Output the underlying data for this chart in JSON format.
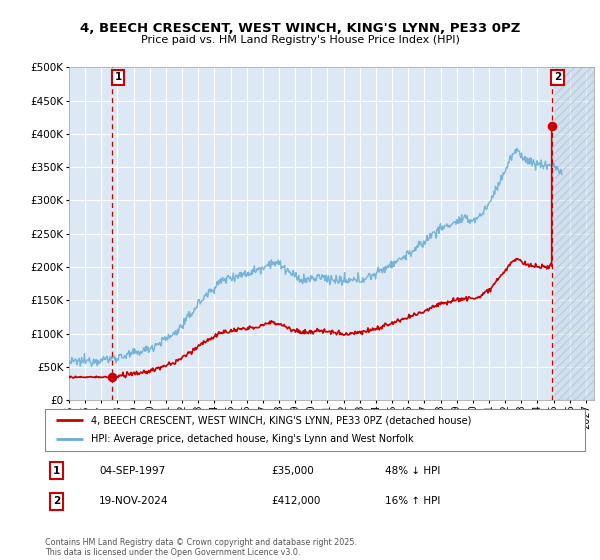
{
  "title_line1": "4, BEECH CRESCENT, WEST WINCH, KING'S LYNN, PE33 0PZ",
  "title_line2": "Price paid vs. HM Land Registry's House Price Index (HPI)",
  "ylim": [
    0,
    500000
  ],
  "xlim_start": 1995.0,
  "xlim_end": 2027.5,
  "yticks": [
    0,
    50000,
    100000,
    150000,
    200000,
    250000,
    300000,
    350000,
    400000,
    450000,
    500000
  ],
  "ytick_labels": [
    "£0",
    "£50K",
    "£100K",
    "£150K",
    "£200K",
    "£250K",
    "£300K",
    "£350K",
    "£400K",
    "£450K",
    "£500K"
  ],
  "bg_color": "#dce9f5",
  "grid_color": "#ffffff",
  "hpi_color": "#6aadd5",
  "property_color": "#cc0000",
  "point1_date": 1997.67,
  "point1_price": 35000,
  "point2_date": 2024.88,
  "point2_price": 412000,
  "legend_label1": "4, BEECH CRESCENT, WEST WINCH, KING'S LYNN, PE33 0PZ (detached house)",
  "legend_label2": "HPI: Average price, detached house, King's Lynn and West Norfolk",
  "table_row1": [
    "1",
    "04-SEP-1997",
    "£35,000",
    "48% ↓ HPI"
  ],
  "table_row2": [
    "2",
    "19-NOV-2024",
    "£412,000",
    "16% ↑ HPI"
  ],
  "footer": "Contains HM Land Registry data © Crown copyright and database right 2025.\nThis data is licensed under the Open Government Licence v3.0.",
  "hatch_start": 2025.0,
  "xticks": [
    1995,
    1996,
    1997,
    1998,
    1999,
    2000,
    2001,
    2002,
    2003,
    2004,
    2005,
    2006,
    2007,
    2008,
    2009,
    2010,
    2011,
    2012,
    2013,
    2014,
    2015,
    2016,
    2017,
    2018,
    2019,
    2020,
    2021,
    2022,
    2023,
    2024,
    2025,
    2026,
    2027
  ]
}
